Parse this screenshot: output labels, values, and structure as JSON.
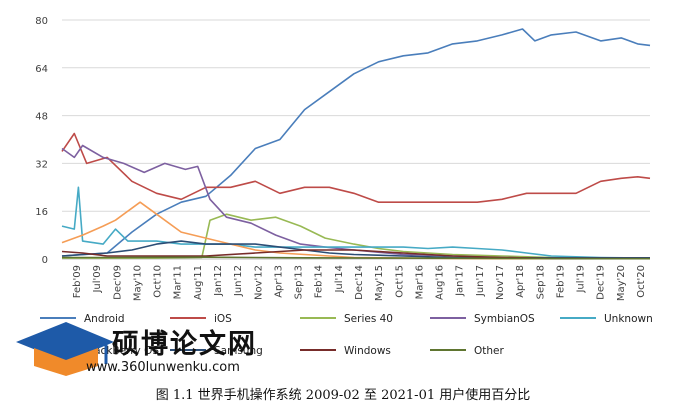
{
  "caption": "图 1.1   世界手机操作系统 2009-02 至 2021-01 用户使用百分比",
  "watermark": {
    "title": "硕博论文网",
    "url": "www.360lunwenku.com",
    "icon": "graduation-cap-logo"
  },
  "chart_data": {
    "type": "line",
    "title": "",
    "xlabel": "",
    "ylabel": "",
    "ylim": [
      0,
      80
    ],
    "yticks": [
      0,
      16,
      32,
      48,
      64,
      80
    ],
    "x_start": "2009-02",
    "x_end": "2021-01",
    "xtick_labels": [
      "Feb'09",
      "Jul'09",
      "Dec'09",
      "May'10",
      "Oct'10",
      "Mar'11",
      "Aug'11",
      "Jan'12",
      "Jun'12",
      "Nov'12",
      "Apr'13",
      "Sep'13",
      "Feb'14",
      "Jul'14",
      "Dec'14",
      "May'15",
      "Oct'15",
      "Mar'16",
      "Aug'16",
      "Jan'17",
      "Jun'17",
      "Nov'17",
      "Apr'18",
      "Sep'18",
      "Feb'19",
      "Jul'19",
      "Dec'19",
      "May'20",
      "Oct'20"
    ],
    "grid": "horizontal",
    "legend_position": "bottom",
    "series": [
      {
        "name": "Android",
        "color": "#4a7ebb",
        "x": [
          "2009-02",
          "2010-01",
          "2010-07",
          "2011-01",
          "2011-07",
          "2012-01",
          "2012-07",
          "2013-01",
          "2013-07",
          "2014-01",
          "2014-07",
          "2015-01",
          "2015-07",
          "2016-01",
          "2016-07",
          "2017-01",
          "2017-07",
          "2018-01",
          "2018-06",
          "2018-09",
          "2019-01",
          "2019-07",
          "2020-01",
          "2020-06",
          "2020-10",
          "2021-01"
        ],
        "y": [
          1,
          2,
          9,
          15,
          19,
          21,
          28,
          37,
          40,
          50,
          56,
          62,
          66,
          68,
          69,
          72,
          73,
          75,
          77,
          73,
          75,
          76,
          73,
          74,
          72,
          71.5
        ]
      },
      {
        "name": "iOS",
        "color": "#be4b48",
        "x": [
          "2009-02",
          "2009-05",
          "2009-08",
          "2010-01",
          "2010-07",
          "2011-01",
          "2011-07",
          "2012-01",
          "2012-07",
          "2013-01",
          "2013-07",
          "2014-01",
          "2014-07",
          "2015-01",
          "2015-07",
          "2016-01",
          "2016-07",
          "2017-01",
          "2017-07",
          "2018-01",
          "2018-07",
          "2019-01",
          "2019-07",
          "2020-01",
          "2020-06",
          "2020-10",
          "2021-01"
        ],
        "y": [
          36,
          42,
          32,
          34,
          26,
          22,
          20,
          24,
          24,
          26,
          22,
          24,
          24,
          22,
          19,
          19,
          19,
          19,
          19,
          20,
          22,
          22,
          22,
          26,
          27,
          27.5,
          27
        ]
      },
      {
        "name": "Series 40",
        "color": "#98b954",
        "x": [
          "2009-02",
          "2011-01",
          "2011-12",
          "2012-02",
          "2012-06",
          "2012-12",
          "2013-06",
          "2013-12",
          "2014-06",
          "2015-01",
          "2015-07",
          "2016-01",
          "2016-07",
          "2017-01",
          "2018-01",
          "2019-01",
          "2020-01",
          "2021-01"
        ],
        "y": [
          0.3,
          0.3,
          0.5,
          13,
          15,
          13,
          14,
          11,
          7,
          5,
          3.5,
          2.5,
          2,
          1.5,
          1,
          0.5,
          0.3,
          0.2
        ]
      },
      {
        "name": "SymbianOS",
        "color": "#7d60a0",
        "x": [
          "2009-02",
          "2009-05",
          "2009-07",
          "2009-12",
          "2010-05",
          "2010-10",
          "2011-03",
          "2011-08",
          "2011-11",
          "2012-02",
          "2012-06",
          "2012-12",
          "2013-06",
          "2013-12",
          "2014-06",
          "2015-01",
          "2016-01",
          "2017-01",
          "2018-01",
          "2019-01",
          "2020-01",
          "2021-01"
        ],
        "y": [
          37,
          34,
          38,
          34,
          32,
          29,
          32,
          30,
          31,
          20,
          14,
          12,
          8,
          5,
          4,
          3,
          1.5,
          1,
          0.5,
          0.2,
          0.1,
          0.1
        ]
      },
      {
        "name": "Unknown",
        "color": "#46aac5",
        "x": [
          "2009-02",
          "2009-05",
          "2009-06",
          "2009-07",
          "2009-12",
          "2010-03",
          "2010-06",
          "2011-01",
          "2011-07",
          "2012-01",
          "2012-07",
          "2013-01",
          "2014-01",
          "2015-01",
          "2016-01",
          "2016-07",
          "2017-01",
          "2017-07",
          "2018-01",
          "2018-07",
          "2019-01",
          "2020-01",
          "2021-01"
        ],
        "y": [
          11,
          10,
          24,
          6,
          5,
          10,
          6,
          6,
          5,
          5,
          5,
          4,
          4,
          4,
          4,
          3.5,
          4,
          3.5,
          3,
          2,
          1,
          0.5,
          0.3
        ]
      },
      {
        "name": "BlackBerry OS",
        "color": "#f59d56",
        "x": [
          "2009-02",
          "2009-07",
          "2009-12",
          "2010-03",
          "2010-07",
          "2010-09",
          "2011-01",
          "2011-07",
          "2012-01",
          "2012-07",
          "2013-01",
          "2013-07",
          "2014-01",
          "2014-07",
          "2015-01",
          "2016-01",
          "2017-01",
          "2018-01",
          "2019-01",
          "2020-01",
          "2021-01"
        ],
        "y": [
          5.5,
          8,
          11,
          13,
          17,
          19,
          15,
          9,
          7,
          5,
          3,
          2,
          1.5,
          1,
          0.5,
          0.3,
          0.2,
          0.1,
          0.1,
          0.1,
          0.1
        ]
      },
      {
        "name": "Samsung",
        "color": "#2c4d75",
        "x": [
          "2009-02",
          "2009-07",
          "2010-01",
          "2010-07",
          "2011-01",
          "2011-07",
          "2012-01",
          "2012-07",
          "2013-01",
          "2013-07",
          "2014-01",
          "2014-07",
          "2015-01",
          "2016-01",
          "2017-01",
          "2018-01",
          "2019-01",
          "2020-01",
          "2021-01"
        ],
        "y": [
          1,
          1.5,
          2,
          3,
          5,
          6,
          5,
          5,
          5,
          4,
          3,
          2,
          1.5,
          1,
          0.5,
          0.4,
          0.4,
          0.4,
          0.4
        ]
      },
      {
        "name": "Windows",
        "color": "#772c2a",
        "x": [
          "2009-02",
          "2009-07",
          "2010-01",
          "2011-01",
          "2012-01",
          "2013-01",
          "2013-07",
          "2014-01",
          "2014-07",
          "2015-01",
          "2015-07",
          "2016-01",
          "2016-07",
          "2017-01",
          "2018-01",
          "2019-01",
          "2020-01",
          "2021-01"
        ],
        "y": [
          2.5,
          2,
          1,
          1,
          1,
          2,
          2.5,
          3,
          3,
          3,
          2.5,
          2,
          1.5,
          1,
          0.5,
          0.2,
          0.1,
          0.1
        ]
      },
      {
        "name": "Other",
        "color": "#5f7530",
        "x": [
          "2009-02",
          "2010-01",
          "2012-01",
          "2014-01",
          "2016-01",
          "2018-01",
          "2020-01",
          "2021-01"
        ],
        "y": [
          0.5,
          0.5,
          0.6,
          0.4,
          0.3,
          0.2,
          0.1,
          0.1
        ]
      }
    ]
  }
}
